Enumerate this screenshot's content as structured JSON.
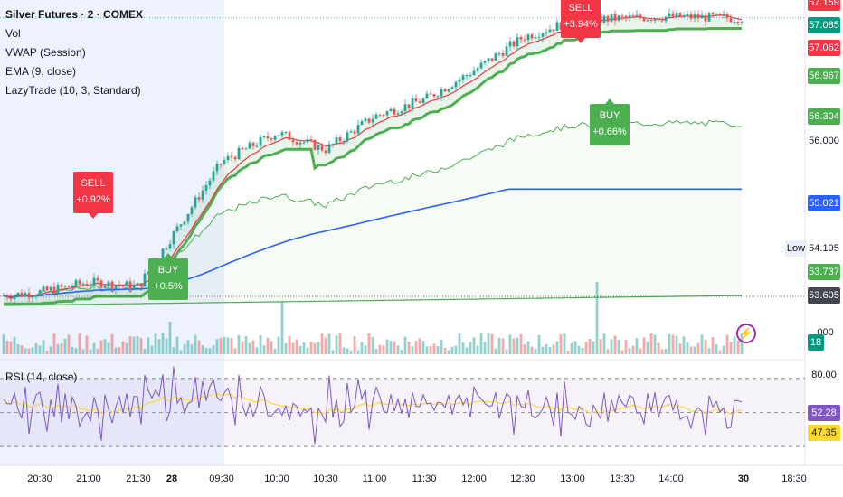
{
  "legend": {
    "symbol": "Silver Futures · 2 · COMEX",
    "vol": "Vol",
    "vwap": "VWAP (Session)",
    "ema": "EMA (9, close)",
    "lazytrade": "LazyTrade (10, 3, Standard)",
    "rsi": "RSI (14, close)"
  },
  "price_axis": {
    "tags": [
      {
        "value": "57.159",
        "color": "#f23645"
      },
      {
        "value": "57.085",
        "color": "#089981"
      },
      {
        "value": "57.062",
        "color": "#f23645"
      },
      {
        "value": "56.967",
        "color": "#4caf50"
      },
      {
        "value": "56.304",
        "color": "#4caf50"
      },
      {
        "value": "55.021",
        "color": "#2962ff"
      },
      {
        "value": "53.737",
        "color": "#4caf50"
      },
      {
        "value": "53.605",
        "color": "#434651"
      },
      {
        "value": "18",
        "color": "#089981"
      }
    ],
    "plain": [
      "56.000",
      "54.195",
      ".000"
    ],
    "low_label": "Low",
    "rsi_tags": [
      {
        "value": "52.28",
        "color": "#7e57c2"
      },
      {
        "value": "47.35",
        "color": "#fdd835"
      }
    ],
    "rsi_plain": [
      "80.00"
    ]
  },
  "signals": [
    {
      "kind": "sell",
      "label": "SELL",
      "pct": "+0.92%"
    },
    {
      "kind": "buy",
      "label": "BUY",
      "pct": "+0.5%"
    },
    {
      "kind": "sell",
      "label": "SELL",
      "pct": "+3.94%"
    },
    {
      "kind": "buy",
      "label": "BUY",
      "pct": "+0.66%"
    }
  ],
  "time_axis": [
    "20:30",
    "21:00",
    "21:30",
    "28",
    "09:30",
    "10:00",
    "10:30",
    "11:00",
    "11:30",
    "12:00",
    "12:30",
    "13:00",
    "13:30",
    "14:00",
    "30",
    "18:30"
  ],
  "colors": {
    "up": "#26a69a",
    "down": "#ef5350",
    "vwap": "#2962ff",
    "ema": "#f23645",
    "lazy_band": "#4caf50",
    "rsi": "#7e57c2",
    "rsi_ma": "#fdd835",
    "session_shade": "#eef2fd"
  },
  "chart_data": {
    "type": "line",
    "y_range": [
      53.0,
      57.3
    ],
    "price_keypoints": [
      {
        "t": "20:30",
        "price": 53.78
      },
      {
        "t": "21:00",
        "price": 53.9
      },
      {
        "t": "21:30",
        "price": 53.85
      },
      {
        "t": "28",
        "price": 54.45
      },
      {
        "t": "09:30",
        "price": 55.35
      },
      {
        "t": "10:00",
        "price": 55.7
      },
      {
        "t": "10:30",
        "price": 55.5
      },
      {
        "t": "11:00",
        "price": 55.9
      },
      {
        "t": "11:30",
        "price": 56.1
      },
      {
        "t": "12:00",
        "price": 56.45
      },
      {
        "t": "12:30",
        "price": 56.85
      },
      {
        "t": "13:00",
        "price": 57.05
      },
      {
        "t": "13:30",
        "price": 57.08
      },
      {
        "t": "14:00",
        "price": 57.1
      },
      {
        "t": "30",
        "price": 57.08
      }
    ],
    "series_last": {
      "VWAP": 55.021,
      "EMA": 57.062,
      "LazyTrade": 56.967,
      "Close": 57.085
    },
    "rsi": {
      "range": [
        20,
        80
      ],
      "levels": [
        70,
        50,
        30
      ],
      "last": 52.28,
      "ma_last": 47.35
    }
  }
}
